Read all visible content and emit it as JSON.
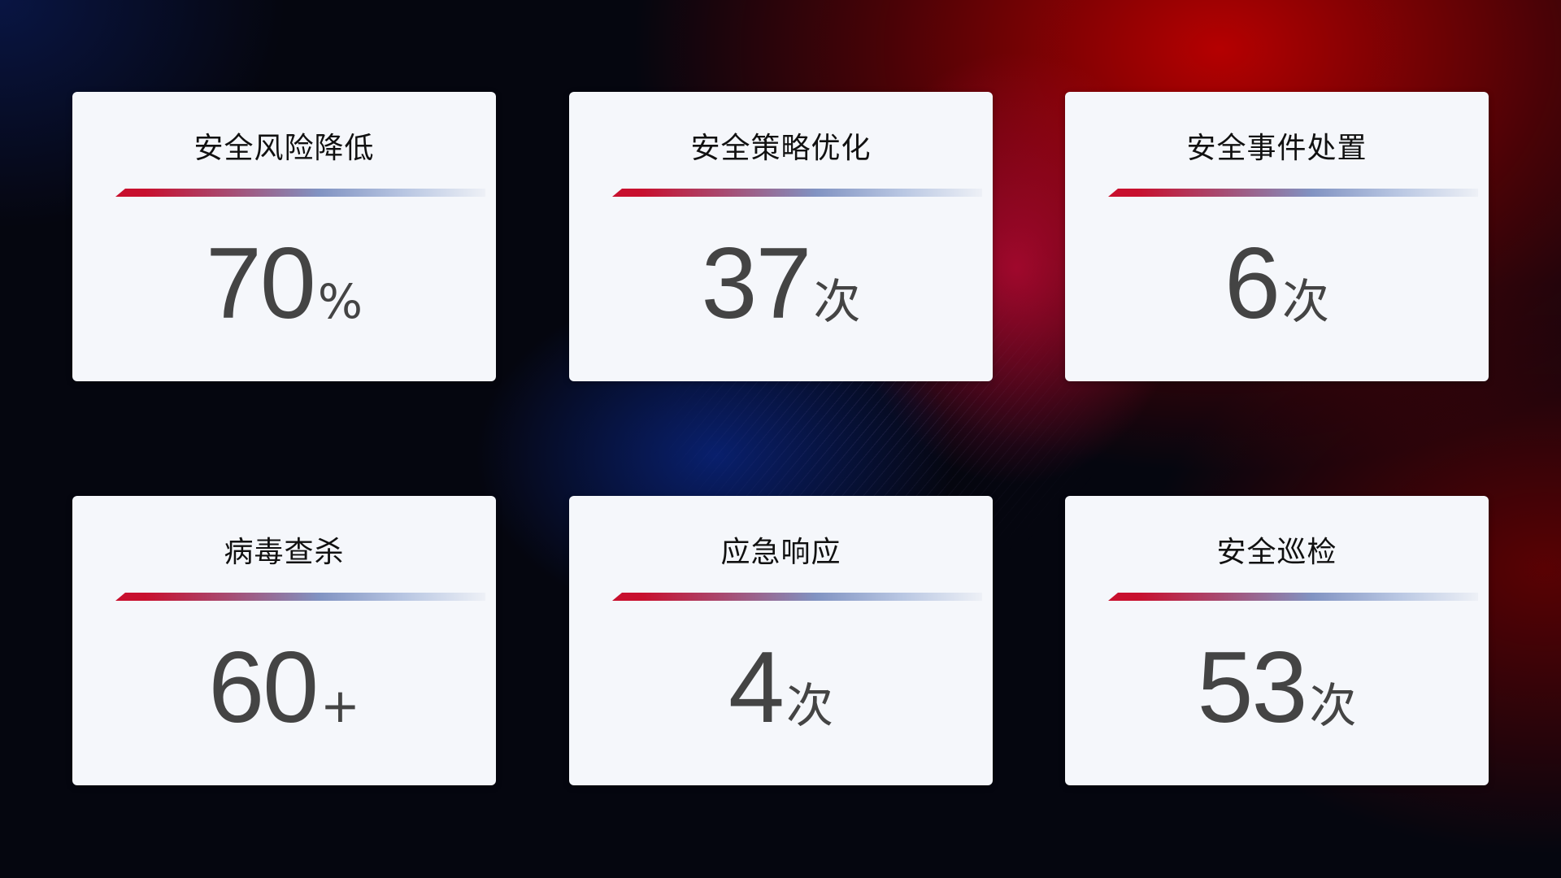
{
  "cards": [
    {
      "title": "安全风险降低",
      "value": "70",
      "unit": "%"
    },
    {
      "title": "安全策略优化",
      "value": "37",
      "unit": "次"
    },
    {
      "title": "安全事件处置",
      "value": "6",
      "unit": "次"
    },
    {
      "title": "病毒查杀",
      "value": "60",
      "unit": "+"
    },
    {
      "title": "应急响应",
      "value": "4",
      "unit": "次"
    },
    {
      "title": "安全巡检",
      "value": "53",
      "unit": "次"
    }
  ],
  "colors": {
    "accent_red": "#c8102e",
    "accent_blue": "#8193c2",
    "card_bg": "#f5f7fb",
    "value_text": "#444444"
  }
}
